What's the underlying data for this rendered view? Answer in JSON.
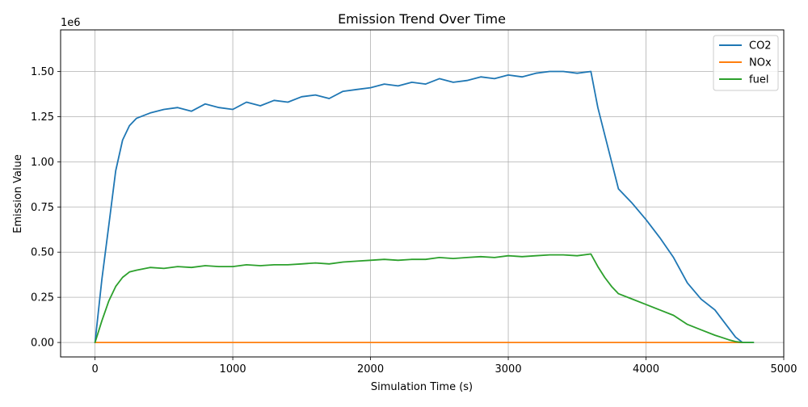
{
  "chart_data": {
    "type": "line",
    "title": "Emission Trend Over Time",
    "xlabel": "Simulation Time (s)",
    "ylabel": "Emission Value",
    "y_multiplier_label": "1e6",
    "xlim": [
      -250,
      5000
    ],
    "ylim": [
      -80000,
      1730000
    ],
    "x_ticks": [
      0,
      1000,
      2000,
      3000,
      4000,
      5000
    ],
    "x_tick_labels": [
      "0",
      "1000",
      "2000",
      "3000",
      "4000",
      "5000"
    ],
    "y_ticks": [
      0,
      250000,
      500000,
      750000,
      1000000,
      1250000,
      1500000
    ],
    "y_tick_labels": [
      "0.00",
      "0.25",
      "0.50",
      "0.75",
      "1.00",
      "1.25",
      "1.50"
    ],
    "grid": true,
    "legend_position": "top-right",
    "series": [
      {
        "name": "CO2",
        "color": "#1f77b4",
        "x": [
          0,
          50,
          100,
          150,
          200,
          250,
          300,
          400,
          500,
          600,
          700,
          800,
          900,
          1000,
          1100,
          1200,
          1300,
          1400,
          1500,
          1600,
          1700,
          1800,
          1900,
          2000,
          2100,
          2200,
          2300,
          2400,
          2500,
          2600,
          2700,
          2800,
          2900,
          3000,
          3100,
          3200,
          3300,
          3400,
          3500,
          3600,
          3650,
          3700,
          3750,
          3800,
          3900,
          4000,
          4100,
          4200,
          4300,
          4400,
          4500,
          4600,
          4650,
          4700,
          4780
        ],
        "y": [
          0,
          350000,
          650000,
          950000,
          1120000,
          1200000,
          1240000,
          1270000,
          1290000,
          1300000,
          1280000,
          1320000,
          1300000,
          1290000,
          1330000,
          1310000,
          1340000,
          1330000,
          1360000,
          1370000,
          1350000,
          1390000,
          1400000,
          1410000,
          1430000,
          1420000,
          1440000,
          1430000,
          1460000,
          1440000,
          1450000,
          1470000,
          1460000,
          1480000,
          1470000,
          1490000,
          1500000,
          1500000,
          1490000,
          1500000,
          1300000,
          1150000,
          1000000,
          850000,
          770000,
          680000,
          580000,
          470000,
          330000,
          240000,
          180000,
          80000,
          30000,
          0,
          0
        ]
      },
      {
        "name": "NOx",
        "color": "#ff7f0e",
        "x": [
          0,
          1000,
          2000,
          3000,
          4000,
          4700
        ],
        "y": [
          0,
          0,
          0,
          0,
          0,
          0
        ]
      },
      {
        "name": "fuel",
        "color": "#2ca02c",
        "x": [
          0,
          50,
          100,
          150,
          200,
          250,
          300,
          400,
          500,
          600,
          700,
          800,
          900,
          1000,
          1100,
          1200,
          1300,
          1400,
          1500,
          1600,
          1700,
          1800,
          1900,
          2000,
          2100,
          2200,
          2300,
          2400,
          2500,
          2600,
          2700,
          2800,
          2900,
          3000,
          3100,
          3200,
          3300,
          3400,
          3500,
          3600,
          3650,
          3700,
          3750,
          3800,
          3900,
          4000,
          4100,
          4200,
          4300,
          4400,
          4500,
          4600,
          4650,
          4700,
          4780
        ],
        "y": [
          0,
          120000,
          230000,
          310000,
          360000,
          390000,
          400000,
          415000,
          410000,
          420000,
          415000,
          425000,
          420000,
          420000,
          430000,
          425000,
          430000,
          430000,
          435000,
          440000,
          435000,
          445000,
          450000,
          455000,
          460000,
          455000,
          460000,
          460000,
          470000,
          465000,
          470000,
          475000,
          470000,
          480000,
          475000,
          480000,
          485000,
          485000,
          480000,
          490000,
          420000,
          360000,
          310000,
          270000,
          240000,
          210000,
          180000,
          150000,
          100000,
          70000,
          40000,
          15000,
          5000,
          0,
          0
        ]
      }
    ]
  }
}
